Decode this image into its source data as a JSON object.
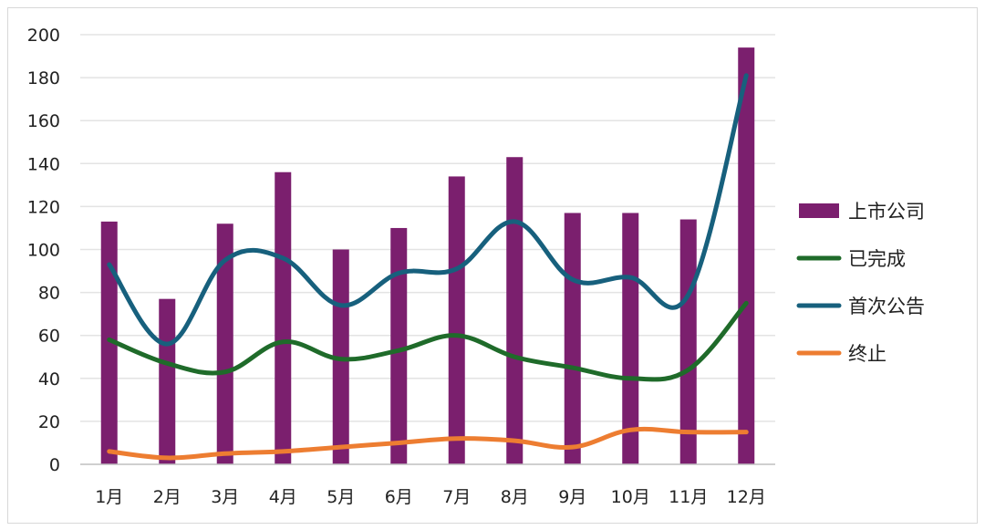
{
  "chart_data": {
    "type": "bar",
    "categories": [
      "1月",
      "2月",
      "3月",
      "4月",
      "5月",
      "6月",
      "7月",
      "8月",
      "9月",
      "10月",
      "11月",
      "12月"
    ],
    "ylim": [
      0,
      200
    ],
    "yticks": [
      0,
      20,
      40,
      60,
      80,
      100,
      120,
      140,
      160,
      180,
      200
    ],
    "grid": true,
    "legend_position": "right",
    "series": [
      {
        "name": "上市公司",
        "kind": "bar",
        "color": "#7b1f6e",
        "values": [
          113,
          77,
          112,
          136,
          100,
          110,
          134,
          143,
          117,
          117,
          114,
          194
        ]
      },
      {
        "name": "已完成",
        "kind": "line",
        "color": "#1f6b2a",
        "values": [
          58,
          47,
          43,
          57,
          49,
          53,
          60,
          50,
          45,
          40,
          44,
          75
        ]
      },
      {
        "name": "首次公告",
        "kind": "line",
        "color": "#17607d",
        "values": [
          93,
          56,
          95,
          96,
          74,
          89,
          91,
          113,
          86,
          87,
          79,
          181
        ]
      },
      {
        "name": "终止",
        "kind": "line",
        "color": "#ed7d31",
        "values": [
          6,
          3,
          5,
          6,
          8,
          10,
          12,
          11,
          8,
          16,
          15,
          15
        ]
      }
    ]
  }
}
